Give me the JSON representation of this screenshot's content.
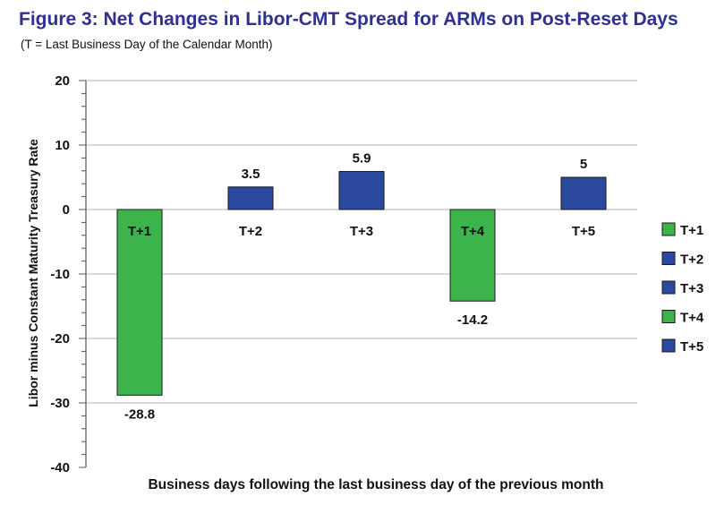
{
  "title": "Figure 3: Net Changes in Libor-CMT Spread for ARMs on Post-Reset Days",
  "subtitle": "(T = Last Business Day of the Calendar Month)",
  "colors": {
    "green": "#3cb44b",
    "blue": "#2b4a9f",
    "grid": "#b4b4b4",
    "axis": "#555555"
  },
  "chart_data": {
    "type": "bar",
    "title": "Figure 3: Net Changes in Libor-CMT Spread for ARMs on Post-Reset Days",
    "subtitle": "(T = Last Business Day of the Calendar Month)",
    "categories": [
      "T+1",
      "T+2",
      "T+3",
      "T+4",
      "T+5"
    ],
    "values": [
      -28.8,
      3.5,
      5.9,
      -14.2,
      5
    ],
    "data_labels": [
      "-28.8",
      "3.5",
      "5.9",
      "-14.2",
      "5"
    ],
    "bar_colors": [
      "#3cb44b",
      "#2b4a9f",
      "#2b4a9f",
      "#3cb44b",
      "#2b4a9f"
    ],
    "xlabel": "Business days following the last business day of the previous month",
    "ylabel": "Libor minus Constant Maturity Treasury Rate",
    "ylim": [
      -40,
      20
    ],
    "yticks": [
      20,
      10,
      0,
      -10,
      -20,
      -30,
      -40
    ],
    "grid": true,
    "legend": {
      "placement": "right",
      "entries": [
        {
          "label": "T+1",
          "color": "#3cb44b"
        },
        {
          "label": "T+2",
          "color": "#2b4a9f"
        },
        {
          "label": "T+3",
          "color": "#2b4a9f"
        },
        {
          "label": "T+4",
          "color": "#3cb44b"
        },
        {
          "label": "T+5",
          "color": "#2b4a9f"
        }
      ]
    }
  }
}
